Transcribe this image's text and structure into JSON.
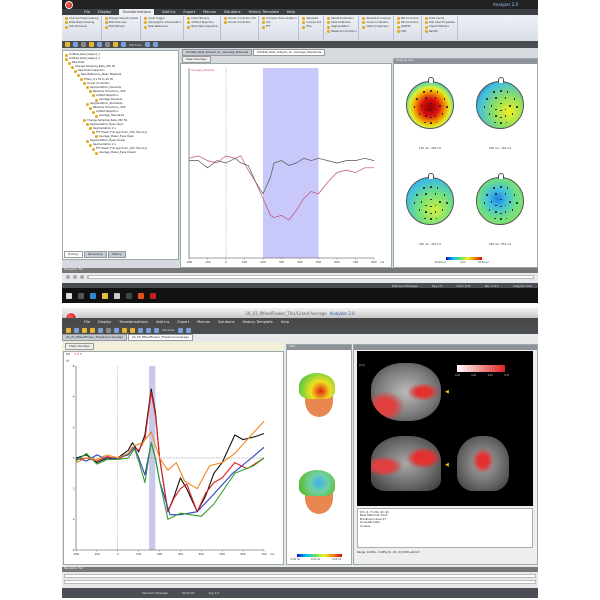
{
  "top": {
    "title": "Analyzer 2.0",
    "menu": [
      "File",
      "Display",
      "Transformations",
      "Add Ins",
      "Export",
      "Macros",
      "Solutions",
      "History Template",
      "Help"
    ],
    "active_menu": "Transformations",
    "ribbon": [
      [
        "Channel Preprocessing",
        "Data Preprocessing",
        "Add Channels"
      ],
      [
        "Change Sampling Rate",
        "Edit Channels",
        "Edit Markers"
      ],
      [
        "Level Trigger",
        "Topographic Interpolation",
        "New Reference"
      ],
      [
        "Data Filtering",
        "Artifact Rejection",
        "Raw Data Inspection"
      ],
      [
        "Ocular Correction ICA",
        "Ocular Correction"
      ],
      [
        "Complex Demodulation",
        "ICA",
        "FFT"
      ],
      [
        "Wavelets",
        "Inverse ICA",
        "PCA"
      ],
      [
        "Result Evaluation",
        "Peak Detection",
        "Segmentation",
        "Baseline Correction"
      ],
      [
        "Statistical Analysis",
        "Cross Correlation",
        "Data Comparison"
      ],
      [
        "MR Correction",
        "CB Correction",
        "LORETA",
        "CSD"
      ],
      [
        "Data Cache",
        "Edit User Properties",
        "Import Markers",
        "Rectify"
      ]
    ],
    "toolbar_windows_label": "Windows",
    "tree": [
      {
        "label": "Oddball_Rest_Subject_1",
        "level": 0
      },
      {
        "label": "Oddball_Rest_Subject_2",
        "level": 0
      },
      {
        "label": "Raw Data",
        "level": 1
      },
      {
        "label": "Change Sampling Rate_250 Hz",
        "level": 2
      },
      {
        "label": "Raw Data Inspection",
        "level": 3
      },
      {
        "label": "New Reference_Mean Mastoids",
        "level": 4
      },
      {
        "label": "Filters_0.1 Hz to 40 Hz",
        "level": 5
      },
      {
        "label": "Ocular Correction",
        "level": 6
      },
      {
        "label": "Segmentation_Deviants",
        "level": 7
      },
      {
        "label": "Baseline Correction_-200",
        "level": 8
      },
      {
        "label": "Artifact Rejection",
        "level": 9
      },
      {
        "label": "Average_Deviants",
        "level": 10
      },
      {
        "label": "Segmentation_Standards",
        "level": 7
      },
      {
        "label": "Baseline Correction_-200",
        "level": 8
      },
      {
        "label": "Artifact Rejection",
        "level": 9
      },
      {
        "label": "Average_Standards",
        "level": 10
      },
      {
        "label": "Change Sampling Rate_250 Hz",
        "level": 6
      },
      {
        "label": "Segmentation_Eyes Open",
        "level": 7
      },
      {
        "label": "Segmentation 2 s",
        "level": 8
      },
      {
        "label": "FFT Power_Full spectrum_10% Hanning",
        "level": 9
      },
      {
        "label": "Average_Power_Eyes Open",
        "level": 10
      },
      {
        "label": "Segmentation_Eyes Closed",
        "level": 7
      },
      {
        "label": "Segmentation 2 s",
        "level": 8
      },
      {
        "label": "FFT Power_Full spectrum_10% Hanning",
        "level": 9
      },
      {
        "label": "Average_Power_Eyes Closed",
        "level": 10
      }
    ],
    "tree_tabs": [
      "Primary",
      "Secondary",
      "History"
    ],
    "doc_tabs": [
      "Oddball_Rest_Subject_2/...Average_Deviants",
      "Oddball_Rest_Subject_2/...Average_Standards"
    ],
    "clear_overlays": "Clear Overlays",
    "legend": "Average_Deviants",
    "maps_title": "Mapping View",
    "map_labels": [
      "100 ms - 200 ms",
      "200 ms - 340 ms",
      "340 ms - 424 ms",
      "424 ms - 552 ms"
    ],
    "map_colorbar": [
      "-10.00 µV",
      "0 µV",
      "10.00 µV"
    ],
    "navigation_title": "Navigation Bar",
    "status": [
      "Standard Message",
      "Seg 1/1",
      "Chan 1/31",
      "Rec 1 of 1",
      "Analyzer 2.0x"
    ]
  },
  "bottom": {
    "title": "2A_03_MfeedFlower_This/Grand Average",
    "app": "Analyzer 2.0",
    "menu": [
      "File",
      "Display",
      "Transformations",
      "Add Ins",
      "Export",
      "Macros",
      "Solutions",
      "History Template",
      "Help"
    ],
    "toolbar_windows_label": "Windows",
    "doc_tabs": [
      "2A_03_MfeedFlower_This/Grand Average",
      "2A_03_MfeedFlower_This/Grand Average"
    ],
    "clear_overlays": "Clear Overlays",
    "channel_label": "O2",
    "legend": "3 4 5",
    "heads_title": "View",
    "heads_colorbar": [
      "-2.00 µV",
      "0.00 µV",
      "2.00 µV"
    ],
    "loreta_unit": "[cm]",
    "loreta_colorbar": [
      "0.00",
      "0.01",
      "0.02",
      "0.03"
    ],
    "loreta_info": [
      "[X=-4, Y=-81, Z=-9]",
      "Best Match at 3mm",
      "Brodmann area 17",
      "Occipital Lobe",
      "Cuneus"
    ],
    "range": "Range: 0.205s - 0.285s  [X, -81, 0]  0.030 µA/mm²",
    "navigation_title": "Navigation Bar",
    "status": [
      "Standard Message",
      "00:00:00",
      "Seg 1/1"
    ]
  },
  "chart_data": [
    {
      "type": "line",
      "xlabel": "ms",
      "xlim": [
        -200,
        800
      ],
      "ylim": [
        -4,
        4
      ],
      "xticks": [
        -200,
        -100,
        0,
        100,
        200,
        300,
        400,
        500,
        600,
        700,
        800
      ],
      "highlight_range": [
        200,
        500
      ],
      "series": [
        {
          "name": "Average_Deviants",
          "color": "#c05070",
          "x": [
            -200,
            -150,
            -100,
            -50,
            0,
            50,
            80,
            120,
            160,
            200,
            240,
            260,
            300,
            340,
            380,
            420,
            460,
            500,
            550,
            600,
            650,
            700,
            750,
            800
          ],
          "y": [
            0.2,
            0.3,
            0.1,
            0,
            0.3,
            0.2,
            0.3,
            -0.3,
            -0.8,
            -1.5,
            -2.2,
            -2.3,
            -2.2,
            -2.4,
            -2,
            -1.5,
            -1.2,
            -1.3,
            -0.8,
            -0.4,
            -0.3,
            -0.4,
            -0.2,
            -0.2
          ]
        },
        {
          "color": "#555555",
          "x": [
            -200,
            -150,
            -100,
            -50,
            0,
            50,
            80,
            120,
            160,
            200,
            240,
            260,
            300,
            340,
            380,
            420,
            460,
            500,
            550,
            600,
            650,
            700,
            750,
            800
          ],
          "y": [
            0.1,
            0.1,
            -0.2,
            0.1,
            0,
            0.2,
            0,
            -0.1,
            -0.8,
            -1.3,
            -0.6,
            0,
            0.1,
            -0.1,
            0,
            0.2,
            0.1,
            0.2,
            0.1,
            0,
            0.1,
            0.1,
            0.2,
            0.1
          ]
        }
      ]
    },
    {
      "type": "line",
      "xlabel": "ms",
      "ylabel": "µV",
      "xlim": [
        -200,
        700
      ],
      "ylim": [
        -6,
        6
      ],
      "y_inverted": true,
      "xticks": [
        -200,
        -100,
        0,
        100,
        200,
        300,
        400,
        500,
        600,
        700
      ],
      "yticks": [
        -6,
        -4,
        -2,
        0,
        2,
        4,
        6
      ],
      "highlight_range": [
        150,
        180
      ],
      "series": [
        {
          "color": "#111111",
          "x": [
            -200,
            -150,
            -100,
            -50,
            0,
            50,
            70,
            100,
            130,
            160,
            180,
            200,
            240,
            270,
            300,
            330,
            380,
            420,
            460,
            500,
            560,
            600,
            660,
            700
          ],
          "y": [
            0,
            -0.2,
            0.3,
            0,
            0,
            -0.5,
            -1,
            -0.4,
            -1.5,
            -4.5,
            -3,
            0,
            3.5,
            2.5,
            1.3,
            2,
            3.5,
            2.5,
            1,
            0.3,
            -1.5,
            -1.2,
            -1.4,
            -1.6
          ]
        },
        {
          "color": "#e02020",
          "x": [
            -200,
            -150,
            -100,
            -50,
            0,
            50,
            70,
            100,
            130,
            160,
            180,
            200,
            240,
            270,
            300,
            330,
            380,
            420,
            460,
            500,
            560,
            620,
            700
          ],
          "y": [
            0.1,
            0,
            0.2,
            -0.1,
            0.1,
            -0.3,
            -0.7,
            -0.5,
            -1.2,
            -4.3,
            -2.8,
            0,
            3.5,
            2.6,
            2,
            1.7,
            3.5,
            2.3,
            1.6,
            1.3,
            0.3,
            0.7,
            0
          ]
        },
        {
          "color": "#3040c0",
          "x": [
            -200,
            -150,
            -100,
            -50,
            0,
            50,
            80,
            100,
            130,
            160,
            180,
            200,
            250,
            300,
            380,
            450,
            550,
            640,
            700
          ],
          "y": [
            0,
            0.2,
            -0.2,
            0.1,
            0,
            -0.2,
            -0.7,
            0,
            1.1,
            -1,
            0,
            1.5,
            3.7,
            3.7,
            3.5,
            2.5,
            1,
            0,
            -0.7
          ]
        },
        {
          "color": "#30a030",
          "x": [
            -200,
            -150,
            -100,
            -50,
            0,
            50,
            80,
            100,
            130,
            160,
            180,
            200,
            240,
            300,
            400,
            460,
            560,
            650,
            700
          ],
          "y": [
            0.2,
            -0.3,
            0.4,
            0.1,
            0.1,
            0,
            -0.6,
            0.2,
            1.6,
            -1,
            0,
            1.5,
            4,
            3.6,
            3.8,
            3,
            1,
            0.5,
            0
          ]
        },
        {
          "color": "#f08820",
          "x": [
            -200,
            -150,
            -100,
            -50,
            0,
            50,
            80,
            120,
            160,
            200,
            240,
            280,
            320,
            380,
            440,
            500,
            560,
            620,
            700
          ],
          "y": [
            0.3,
            0,
            0.1,
            -0.2,
            0,
            -0.3,
            -0.8,
            -1,
            -1.7,
            0,
            0.8,
            0.3,
            1.5,
            2,
            0.5,
            0.3,
            -0.3,
            -1.2,
            -2.4
          ]
        }
      ]
    }
  ]
}
